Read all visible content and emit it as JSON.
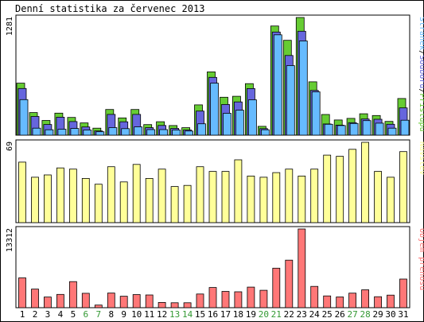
{
  "chart_data": {
    "title": "Denní statistika za červenec 2013",
    "days": [
      "1",
      "2",
      "3",
      "4",
      "5",
      "6",
      "7",
      "8",
      "9",
      "10",
      "11",
      "12",
      "13",
      "14",
      "15",
      "16",
      "17",
      "18",
      "19",
      "20",
      "21",
      "22",
      "23",
      "24",
      "25",
      "26",
      "27",
      "28",
      "29",
      "30",
      "31"
    ],
    "weekend_days": [
      "6",
      "7",
      "13",
      "14",
      "20",
      "21",
      "27",
      "28"
    ],
    "colors": {
      "hits": "#66cc33",
      "files": "#6666dd",
      "pages": "#66bbff",
      "visits": "#ffff99",
      "volume": "#ff7777",
      "weekday_label": "#000000",
      "weekend_label": "#339933",
      "frame": "#000000"
    },
    "panels": [
      {
        "type": "bar",
        "ymax_label": "1281",
        "ymax": 1281,
        "legend": [
          {
            "text": "Stránek",
            "color": "#66bbff"
          },
          {
            "text": "/",
            "color": "#000000"
          },
          {
            "text": "Souborů",
            "color": "#6666dd"
          },
          {
            "text": "/",
            "color": "#000000"
          },
          {
            "text": "Přístupů",
            "color": "#66cc33"
          }
        ],
        "series": [
          {
            "name": "Přístupů",
            "values": [
              566,
              246,
              160,
              240,
              193,
              133,
              76,
              280,
              188,
              280,
              115,
              146,
              105,
              81,
              330,
              689,
              413,
              423,
              561,
              96,
              1188,
              1033,
              1281,
              581,
              225,
              165,
              183,
              233,
              214,
              150,
              399
            ]
          },
          {
            "name": "Souborů",
            "values": [
              508,
              203,
              116,
              196,
              148,
              89,
              46,
              226,
              145,
              226,
              81,
              106,
              74,
              56,
              262,
              629,
              334,
              362,
              507,
              71,
              1123,
              867,
              1131,
              487,
              122,
              109,
              136,
              176,
              173,
              119,
              297
            ]
          },
          {
            "name": "Stránek",
            "values": [
              387,
              76,
              59,
              65,
              73,
              56,
              37,
              82,
              71,
              90,
              61,
              61,
              56,
              45,
              124,
              566,
              238,
              272,
              385,
              59,
              1092,
              757,
              1026,
              472,
              119,
              105,
              127,
              158,
              131,
              76,
              163
            ]
          }
        ]
      },
      {
        "type": "bar",
        "ymax_label": "69",
        "ymax": 69,
        "legend": [
          {
            "text": "Návštěv",
            "color": "#ffff99"
          }
        ],
        "series": [
          {
            "name": "Návštěv",
            "values": [
              52,
              39,
              41,
              47,
              46,
              38,
              33,
              48,
              35,
              50,
              38,
              46,
              31,
              32,
              48,
              44,
              44,
              54,
              40,
              39,
              43,
              46,
              40,
              46,
              58,
              57,
              63,
              69,
              44,
              39,
              61
            ]
          }
        ]
      },
      {
        "type": "bar",
        "ymax_label": "13312",
        "ymax": 13312,
        "legend": [
          {
            "text": "Objem přenosu",
            "color": "#ff7777"
          }
        ],
        "series": [
          {
            "name": "Objem přenosu",
            "values": [
              5040,
              3150,
              1800,
              2250,
              4410,
              2430,
              450,
              2480,
              1940,
              2220,
              2150,
              890,
              830,
              830,
              2310,
              3410,
              2760,
              2690,
              3480,
              2950,
              6680,
              8040,
              13312,
              3600,
              1990,
              1810,
              2460,
              3030,
              1860,
              2130,
              4840
            ]
          }
        ]
      }
    ]
  }
}
